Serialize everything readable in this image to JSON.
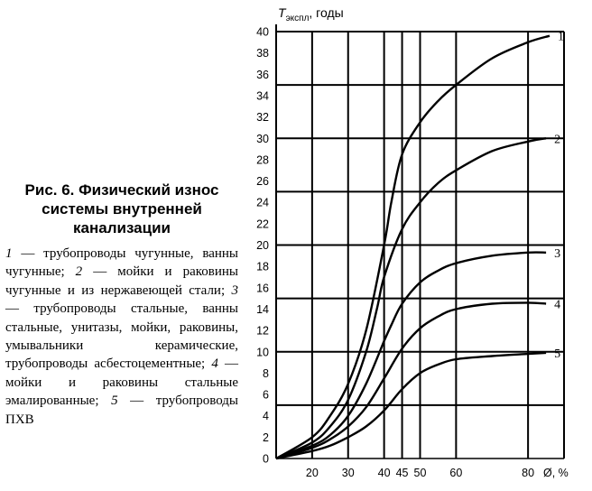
{
  "caption": {
    "title": "Рис. 6. Физический износ системы внутренней канализации",
    "legend": [
      {
        "num": "1",
        "text": " — трубопроводы чугунные, ванны чугунные; "
      },
      {
        "num": "2",
        "text": " — мойки и раковины чугунные и из нержавеющей стали; "
      },
      {
        "num": "3",
        "text": " — трубопроводы стальные, ванны стальные, унитазы, мойки, раковины, умывальники керамические, трубопроводы асбестоцементные; "
      },
      {
        "num": "4",
        "text": " — мойки и раковины стальные эмалированные; "
      },
      {
        "num": "5",
        "text": " — трубопроводы ПХВ"
      }
    ]
  },
  "chart_data": {
    "type": "line",
    "ylabel_main": "T",
    "ylabel_sub": "экспл",
    "ylabel_rest": ", годы",
    "xlabel": "Ø, %",
    "xlim": [
      10,
      90
    ],
    "ylim": [
      0,
      40
    ],
    "y_ticks": [
      0,
      2,
      4,
      6,
      8,
      10,
      12,
      14,
      16,
      18,
      20,
      22,
      24,
      26,
      28,
      30,
      32,
      34,
      36,
      38,
      40
    ],
    "x_ticks": [
      20,
      30,
      40,
      45,
      50,
      60,
      80
    ],
    "y_gridlines": [
      5,
      10,
      15,
      20,
      25,
      30,
      35,
      40
    ],
    "x_gridlines": [
      20,
      30,
      40,
      45,
      50,
      60,
      80,
      90
    ],
    "series": [
      {
        "name": "1",
        "x": [
          10,
          20,
          25,
          30,
          35,
          40,
          42,
          45,
          50,
          55,
          60,
          70,
          80,
          86
        ],
        "y": [
          0,
          2,
          4,
          7,
          12,
          20,
          24,
          28.5,
          31.5,
          33.5,
          35,
          37.5,
          39,
          39.6
        ]
      },
      {
        "name": "2",
        "x": [
          10,
          20,
          25,
          30,
          35,
          38,
          40,
          45,
          50,
          55,
          60,
          70,
          80,
          85
        ],
        "y": [
          0,
          1.5,
          3,
          5.5,
          10,
          14,
          17,
          21.5,
          24,
          25.8,
          27,
          28.8,
          29.7,
          30
        ]
      },
      {
        "name": "3",
        "x": [
          10,
          20,
          25,
          30,
          35,
          40,
          42,
          45,
          50,
          55,
          60,
          70,
          80,
          85
        ],
        "y": [
          0,
          1.2,
          2.2,
          4,
          7,
          11,
          12.5,
          14.5,
          16.5,
          17.6,
          18.3,
          19,
          19.3,
          19.3
        ]
      },
      {
        "name": "4",
        "x": [
          10,
          20,
          25,
          30,
          35,
          40,
          45,
          50,
          55,
          60,
          70,
          80,
          85
        ],
        "y": [
          0,
          1,
          1.8,
          3,
          4.8,
          7.5,
          10.3,
          12.2,
          13.3,
          14,
          14.5,
          14.6,
          14.5
        ]
      },
      {
        "name": "5",
        "x": [
          10,
          20,
          25,
          30,
          35,
          40,
          45,
          50,
          55,
          60,
          70,
          80,
          85
        ],
        "y": [
          0,
          0.7,
          1.2,
          2,
          3,
          4.5,
          6.5,
          8,
          8.8,
          9.3,
          9.6,
          9.8,
          9.9
        ]
      }
    ]
  }
}
